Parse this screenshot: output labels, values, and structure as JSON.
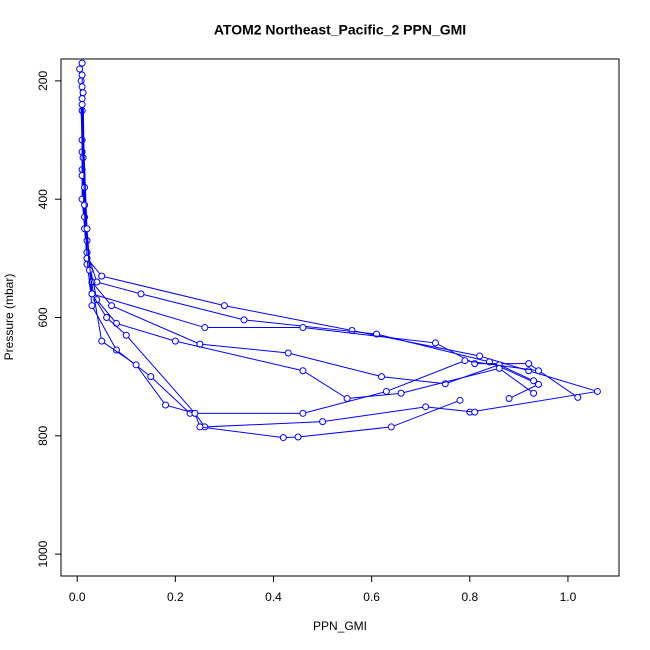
{
  "chart_data": {
    "type": "line",
    "title": "ATOM2 Northeast_Pacific_2 PPN_GMI",
    "x_label": "PPN_GMI",
    "y_label": "Pressure (mbar)",
    "xlim": [
      -0.033,
      1.104
    ],
    "ylim": [
      1037,
      163
    ],
    "xticks": [
      {
        "value": 0,
        "label": "0.0"
      },
      0.2,
      0.4,
      0.6,
      0.8,
      {
        "value": 1,
        "label": "1.0"
      }
    ],
    "yticks": [
      200,
      400,
      600,
      800,
      1000
    ],
    "series": [
      {
        "color": "#0000ff",
        "x": [
          0.01,
          0.01,
          0.01,
          0.015,
          0.02,
          0.05,
          0.3,
          0.56,
          0.82,
          0.92,
          1.06,
          0.8
        ],
        "values": [
          170,
          250,
          350,
          450,
          500,
          530,
          580,
          622,
          665,
          690,
          725,
          760
        ]
      },
      {
        "color": "#0000ff",
        "x": [
          0.005,
          0.01,
          0.01,
          0.02,
          0.04,
          0.13,
          0.34,
          0.61,
          0.84,
          0.94,
          0.88
        ],
        "values": [
          180,
          300,
          400,
          490,
          540,
          560,
          604,
          628,
          675,
          713,
          737
        ]
      },
      {
        "color": "#0000ff",
        "x": [
          0.008,
          0.01,
          0.015,
          0.02,
          0.03,
          0.26,
          0.46,
          0.73,
          0.81,
          0.92,
          1.02
        ],
        "values": [
          200,
          320,
          430,
          510,
          560,
          617,
          617,
          643,
          678,
          678,
          735
        ]
      },
      {
        "color": "#0000ff",
        "x": [
          0.01,
          0.012,
          0.02,
          0.03,
          0.07,
          0.25,
          0.43,
          0.62,
          0.75,
          0.86,
          0.93
        ],
        "values": [
          190,
          330,
          470,
          540,
          580,
          645,
          660,
          700,
          712,
          680,
          707
        ]
      },
      {
        "color": "#0000ff",
        "x": [
          0.01,
          0.01,
          0.02,
          0.04,
          0.08,
          0.2,
          0.46,
          0.55,
          0.66,
          0.86,
          0.93
        ],
        "values": [
          210,
          360,
          490,
          570,
          610,
          640,
          690,
          737,
          728,
          686,
          728
        ]
      },
      {
        "color": "#0000ff",
        "x": [
          0.012,
          0.015,
          0.02,
          0.03,
          0.08,
          0.15,
          0.23,
          0.46,
          0.63,
          0.79,
          0.94
        ],
        "values": [
          220,
          380,
          500,
          580,
          655,
          700,
          762,
          762,
          725,
          673,
          690
        ]
      },
      {
        "color": "#0000ff",
        "x": [
          0.01,
          0.015,
          0.025,
          0.05,
          0.12,
          0.18,
          0.24,
          0.26,
          0.5,
          0.71,
          0.81
        ],
        "values": [
          230,
          410,
          520,
          640,
          680,
          748,
          762,
          785,
          776,
          751,
          760
        ]
      },
      {
        "color": "#0000ff",
        "x": [
          0.01,
          0.02,
          0.03,
          0.06,
          0.1,
          0.24,
          0.25,
          0.42,
          0.45,
          0.64,
          0.78
        ],
        "values": [
          240,
          450,
          560,
          600,
          630,
          762,
          785,
          803,
          802,
          785,
          740
        ]
      }
    ]
  }
}
